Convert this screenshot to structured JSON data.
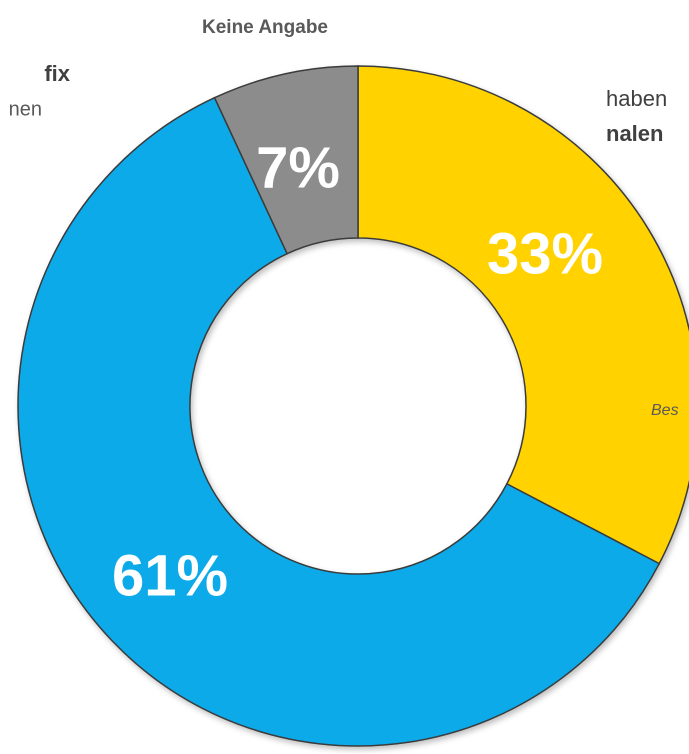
{
  "chart_data": {
    "type": "donut",
    "categories": [
      null,
      null,
      "Keine Angabe"
    ],
    "values": [
      33,
      61,
      7
    ],
    "value_labels": [
      "33%",
      "61%",
      "7%"
    ],
    "colors": [
      "#FFD200",
      "#0AAAE9",
      "#8C8C8C"
    ],
    "annotations": [
      "fix",
      "nen",
      "haben",
      "nalen",
      "Bes"
    ]
  }
}
